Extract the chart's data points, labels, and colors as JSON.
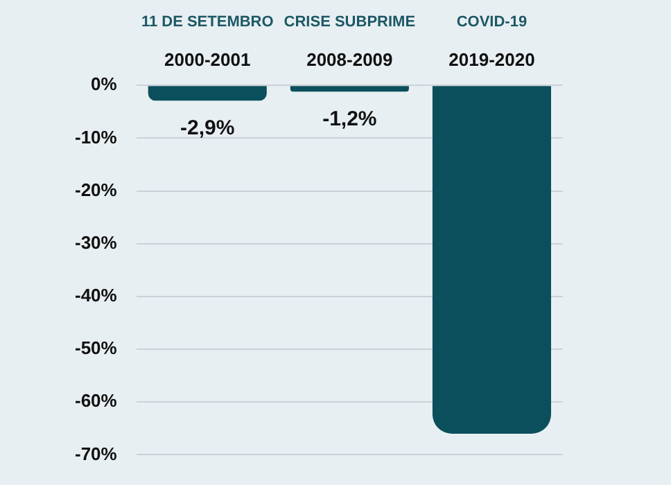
{
  "chart_data": {
    "type": "bar",
    "categories": [
      "2000-2001",
      "2008-2009",
      "2019-2020"
    ],
    "values": [
      -2.9,
      -1.2,
      -66
    ],
    "value_labels": [
      "-2,9%",
      "-1,2%",
      null
    ],
    "color": "#0b4f5c",
    "ylim": [
      -70,
      0
    ],
    "yticks": [
      {
        "value": 0,
        "label": "0%"
      },
      {
        "value": -10,
        "label": "-10%"
      },
      {
        "value": -20,
        "label": "-20%"
      },
      {
        "value": -30,
        "label": "-30%"
      },
      {
        "value": -40,
        "label": "-40%"
      },
      {
        "value": -50,
        "label": "-50%"
      },
      {
        "value": -60,
        "label": "-60%"
      },
      {
        "value": -70,
        "label": "-70%"
      }
    ],
    "annotations": [
      "11 DE SETEMBRO",
      "CRISE SUBPRIME",
      "COVID-19"
    ],
    "grid": "y",
    "legend": false
  }
}
